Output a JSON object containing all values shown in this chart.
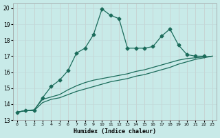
{
  "xlabel": "Humidex (Indice chaleur)",
  "bg_color": "#c8eae8",
  "line_color": "#1a6b5a",
  "xlim": [
    -0.5,
    23.5
  ],
  "ylim": [
    13,
    20.3
  ],
  "yticks": [
    13,
    14,
    15,
    16,
    17,
    18,
    19,
    20
  ],
  "xticks": [
    0,
    1,
    2,
    3,
    4,
    5,
    6,
    7,
    8,
    9,
    10,
    11,
    12,
    13,
    14,
    15,
    16,
    17,
    18,
    19,
    20,
    21,
    22,
    23
  ],
  "series_main": [
    13.5,
    13.6,
    13.6,
    14.4,
    15.1,
    15.5,
    16.1,
    17.2,
    17.5,
    18.35,
    19.95,
    19.55,
    19.35,
    17.5,
    17.5,
    17.5,
    17.6,
    18.25,
    18.7,
    17.7,
    17.1,
    17.0,
    17.0,
    null
  ],
  "series_line1": [
    13.5,
    13.6,
    13.6,
    14.1,
    14.3,
    14.4,
    14.6,
    14.8,
    14.95,
    15.1,
    15.25,
    15.4,
    15.5,
    15.6,
    15.75,
    15.85,
    16.0,
    16.15,
    16.3,
    16.5,
    16.65,
    16.8,
    16.9,
    17.0
  ],
  "series_line2": [
    13.5,
    13.6,
    13.65,
    14.3,
    14.45,
    14.6,
    14.9,
    15.15,
    15.35,
    15.5,
    15.6,
    15.7,
    15.8,
    15.9,
    16.05,
    16.15,
    16.3,
    16.45,
    16.6,
    16.75,
    16.85,
    16.9,
    16.95,
    17.0
  ]
}
